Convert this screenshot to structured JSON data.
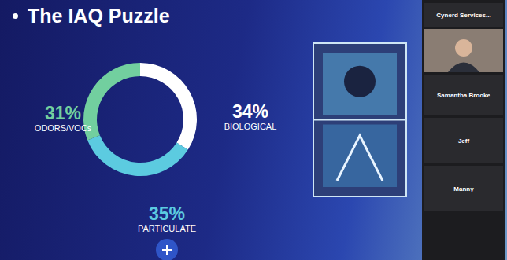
{
  "chart_data": {
    "type": "pie",
    "title": "The IAQ Puzzle",
    "categories": [
      "BIOLOGICAL",
      "PARTICULATE",
      "ODORS/VOCs"
    ],
    "values": [
      34,
      35,
      31
    ],
    "value_labels": [
      "34%",
      "35%",
      "31%"
    ],
    "colors": [
      "#ffffff",
      "#5ccbe0",
      "#72cf9f"
    ],
    "data_labels": true
  },
  "participants": [
    "Cynerd Services...",
    "Samantha Brooke",
    "Jeff",
    "Manny"
  ]
}
